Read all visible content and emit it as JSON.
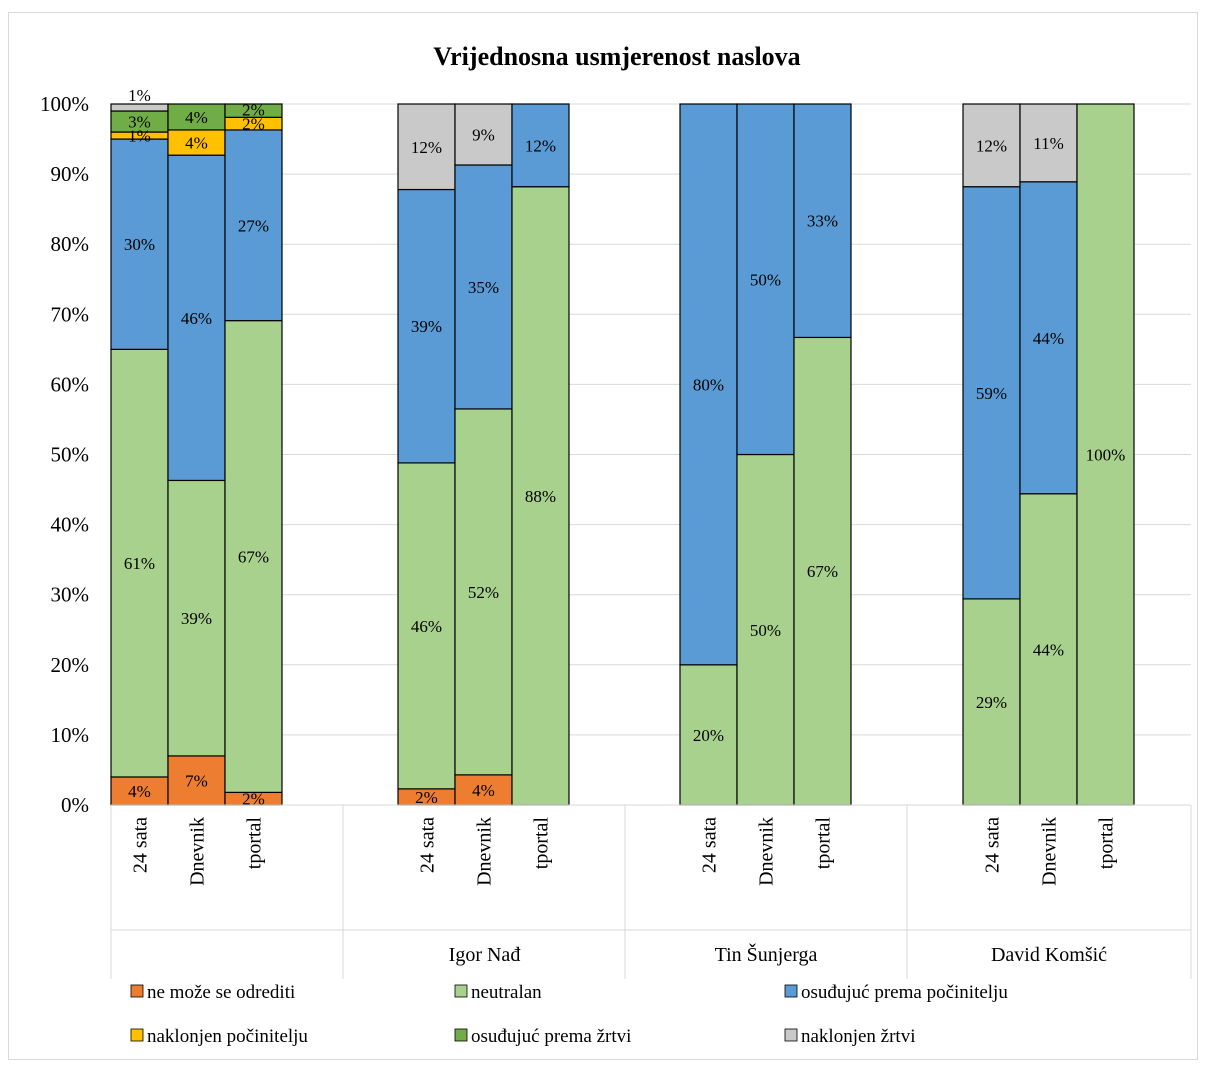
{
  "chart_data": {
    "type": "bar",
    "stacked": true,
    "title": "Vrijednosna usmjerenost naslova",
    "ylim": [
      0,
      100
    ],
    "y_ticks": [
      "0%",
      "10%",
      "20%",
      "30%",
      "40%",
      "50%",
      "60%",
      "70%",
      "80%",
      "90%",
      "100%"
    ],
    "grid": true,
    "legend_position": "bottom",
    "groups": [
      "",
      "Igor Nađ",
      "Tin Šunjerga",
      "David Komšić"
    ],
    "categories": [
      "24 sata",
      "Dnevnik",
      "tportal"
    ],
    "series": [
      {
        "name": "ne može se odrediti",
        "color": "#ED7D31"
      },
      {
        "name": "neutralan",
        "color": "#A9D18E"
      },
      {
        "name": "osuđujuć prema počinitelju",
        "color": "#5B9BD5"
      },
      {
        "name": "naklonjen počinitelju",
        "color": "#FFC000"
      },
      {
        "name": "osuđujuć prema žrtvi",
        "color": "#70AD47"
      },
      {
        "name": "naklonjen žrtvi",
        "color": "#C9C9C9"
      }
    ],
    "bars": [
      {
        "group": 0,
        "category": "24 sata",
        "values": [
          4,
          61,
          30,
          1,
          3,
          1
        ],
        "actual": [
          4.0,
          61.0,
          30.0,
          1.0,
          3.0,
          1.0
        ]
      },
      {
        "group": 0,
        "category": "Dnevnik",
        "values": [
          7,
          39,
          46,
          4,
          4,
          0
        ],
        "actual": [
          7.0,
          39.3,
          46.4,
          3.6,
          3.7,
          0
        ]
      },
      {
        "group": 0,
        "category": "tportal",
        "values": [
          2,
          67,
          27,
          2,
          2,
          0
        ],
        "actual": [
          1.8,
          67.3,
          27.2,
          1.8,
          1.9,
          0
        ]
      },
      {
        "group": 1,
        "category": "24 sata",
        "values": [
          2,
          46,
          39,
          0,
          0,
          12
        ],
        "actual": [
          2.3,
          46.5,
          39.0,
          0,
          0,
          12.2
        ]
      },
      {
        "group": 1,
        "category": "Dnevnik",
        "values": [
          4,
          52,
          35,
          0,
          0,
          9
        ],
        "actual": [
          4.3,
          52.2,
          34.8,
          0,
          0,
          8.7
        ]
      },
      {
        "group": 1,
        "category": "tportal",
        "values": [
          0,
          88,
          12,
          0,
          0,
          0
        ],
        "actual": [
          0,
          88.2,
          11.8,
          0,
          0,
          0
        ]
      },
      {
        "group": 2,
        "category": "24 sata",
        "values": [
          0,
          20,
          80,
          0,
          0,
          0
        ],
        "actual": [
          0,
          20.0,
          80.0,
          0,
          0,
          0
        ]
      },
      {
        "group": 2,
        "category": "Dnevnik",
        "values": [
          0,
          50,
          50,
          0,
          0,
          0
        ],
        "actual": [
          0,
          50.0,
          50.0,
          0,
          0,
          0
        ]
      },
      {
        "group": 2,
        "category": "tportal",
        "values": [
          0,
          67,
          33,
          0,
          0,
          0
        ],
        "actual": [
          0,
          66.7,
          33.3,
          0,
          0,
          0
        ]
      },
      {
        "group": 3,
        "category": "24 sata",
        "values": [
          0,
          29,
          59,
          0,
          0,
          12
        ],
        "actual": [
          0,
          29.4,
          58.8,
          0,
          0,
          11.8
        ]
      },
      {
        "group": 3,
        "category": "Dnevnik",
        "values": [
          0,
          44,
          44,
          0,
          0,
          11
        ],
        "actual": [
          0,
          44.4,
          44.5,
          0,
          0,
          11.1
        ]
      },
      {
        "group": 3,
        "category": "tportal",
        "values": [
          0,
          100,
          0,
          0,
          0,
          0
        ],
        "actual": [
          0,
          100,
          0,
          0,
          0,
          0
        ]
      }
    ]
  }
}
